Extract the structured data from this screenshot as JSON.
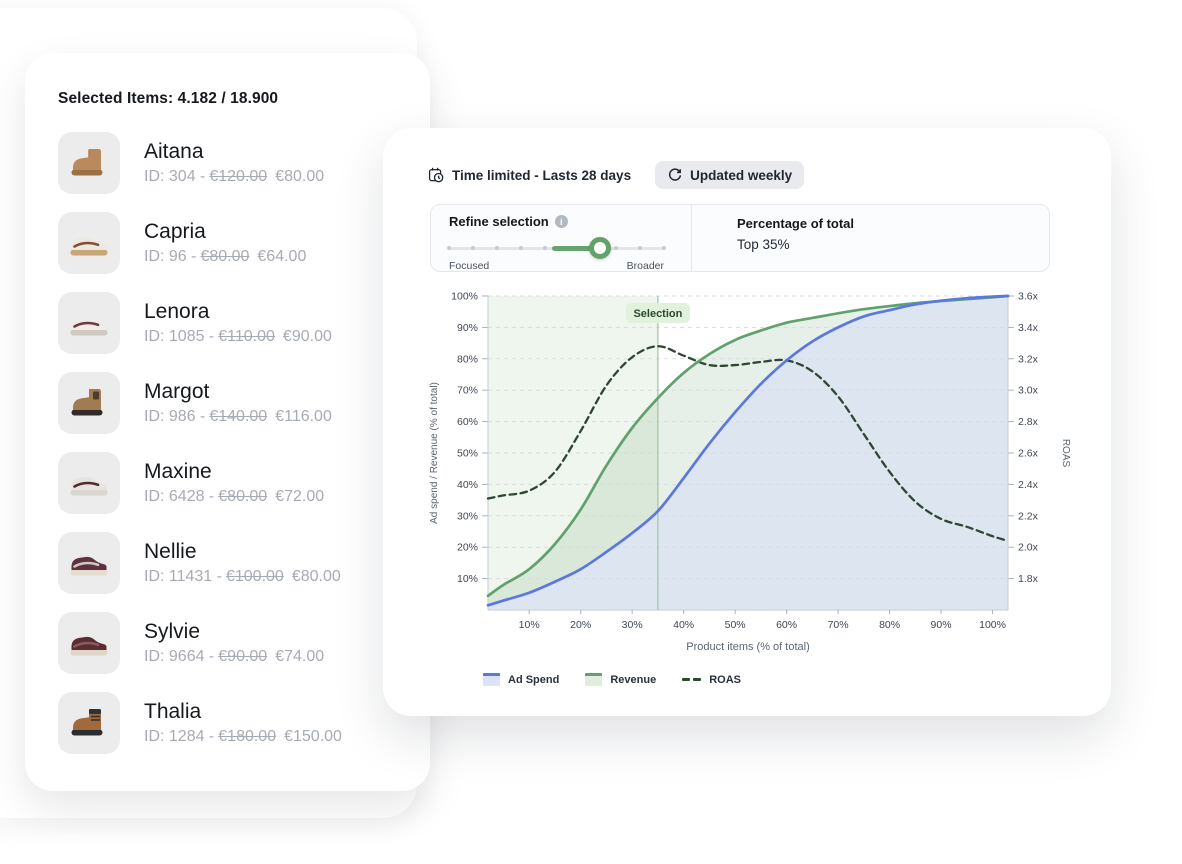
{
  "left_panel": {
    "title": "Selected Items: 4.182 / 18.900",
    "items": [
      {
        "name": "Aitana",
        "id_label": "ID: 304 -",
        "old_price": "€120.00",
        "new_price": "€80.00",
        "shoe": {
          "type": "ugg",
          "upper": "#bb8a5c",
          "accent": "#ab7a4e",
          "sole": "#9c7045"
        }
      },
      {
        "name": "Capria",
        "id_label": "ID: 96 -",
        "old_price": "€80.00",
        "new_price": "€64.00",
        "shoe": {
          "type": "sneaker",
          "upper": "#ece8e2",
          "accent": "#8d4a33",
          "sole": "#c9a678"
        }
      },
      {
        "name": "Lenora",
        "id_label": "ID: 1085 -",
        "old_price": "€110.00",
        "new_price": "€90.00",
        "shoe": {
          "type": "sneaker",
          "upper": "#efece7",
          "accent": "#6d3743",
          "sole": "#cfc9c2"
        }
      },
      {
        "name": "Margot",
        "id_label": "ID: 986 -",
        "old_price": "€140.00",
        "new_price": "€116.00",
        "shoe": {
          "type": "chelsea",
          "upper": "#a17c50",
          "accent": "#4a3c2e",
          "sole": "#2f2c29"
        }
      },
      {
        "name": "Maxine",
        "id_label": "ID: 6428 -",
        "old_price": "€80.00",
        "new_price": "€72.00",
        "shoe": {
          "type": "sneaker",
          "upper": "#e7e3de",
          "accent": "#54282f",
          "sole": "#d9d5d0"
        }
      },
      {
        "name": "Nellie",
        "id_label": "ID: 11431 -",
        "old_price": "€100.00",
        "new_price": "€80.00",
        "shoe": {
          "type": "sneaker",
          "upper": "#5e3040",
          "accent": "#cfc8bf",
          "sole": "#e3dccf"
        }
      },
      {
        "name": "Sylvie",
        "id_label": "ID: 9664 -",
        "old_price": "€90.00",
        "new_price": "€74.00",
        "shoe": {
          "type": "sneaker",
          "upper": "#5a2d33",
          "accent": "#8a5a5e",
          "sole": "#ddd6c9"
        }
      },
      {
        "name": "Thalia",
        "id_label": "ID: 1284 -",
        "old_price": "€180.00",
        "new_price": "€150.00",
        "shoe": {
          "type": "hiker",
          "upper": "#a06a3c",
          "accent": "#2e3136",
          "sole": "#2a2d32"
        }
      }
    ]
  },
  "right_panel": {
    "time_limited_label": "Time limited - Lasts 28 days",
    "updated_weekly_label": "Updated weekly",
    "refine": {
      "title": "Refine selection",
      "left_label": "Focused",
      "right_label": "Broader",
      "slider": {
        "fill_start_pct": 48,
        "value_pct": 70
      }
    },
    "percentage": {
      "title": "Percentage of total",
      "value": "Top 35%"
    }
  },
  "chart_data": {
    "type": "line",
    "xlabel": "Product items (% of total)",
    "ylabel_left": "Ad spend / Revenue (% of total)",
    "ylabel_right": "ROAS",
    "grid": "horizontal-dashed",
    "legend_position": "bottom-left",
    "xlim": [
      2,
      103
    ],
    "ylim_left": [
      0,
      100
    ],
    "ylim_right": [
      1.6,
      3.6
    ],
    "x_ticks": [
      10,
      20,
      30,
      40,
      50,
      60,
      70,
      80,
      90,
      100
    ],
    "x_tick_labels": [
      "10%",
      "20%",
      "30%",
      "40%",
      "50%",
      "60%",
      "70%",
      "80%",
      "90%",
      "100%"
    ],
    "y_ticks_left": [
      10,
      20,
      30,
      40,
      50,
      60,
      70,
      80,
      90,
      100
    ],
    "y_tick_labels_left": [
      "10%",
      "20%",
      "30%",
      "40%",
      "50%",
      "60%",
      "70%",
      "80%",
      "90%",
      "100%"
    ],
    "y_ticks_right": [
      1.8,
      2.0,
      2.2,
      2.4,
      2.6,
      2.8,
      3.0,
      3.2,
      3.4,
      3.6
    ],
    "y_tick_labels_right": [
      "1.8x",
      "2.0x",
      "2.2x",
      "2.4x",
      "2.6x",
      "2.8x",
      "3.0x",
      "3.2x",
      "3.4x",
      "3.6x"
    ],
    "selection": {
      "x": 35,
      "label": "Selection",
      "band_fill": "#eff6ed",
      "line_color": "#a3c2a4",
      "badge_bg": "#e2f1dc",
      "badge_text_color": "#2a4a2c"
    },
    "x": [
      2,
      5,
      10,
      15,
      20,
      25,
      30,
      35,
      40,
      45,
      50,
      55,
      60,
      65,
      70,
      75,
      80,
      85,
      90,
      95,
      100,
      103
    ],
    "series": [
      {
        "name": "Ad Spend",
        "axis": "left",
        "style": "solid",
        "color": "#5a78de",
        "fill": "#dde5f0",
        "legend_fill": "#dbe4f4",
        "values": [
          1.5,
          3,
          5.5,
          9,
          13,
          18.5,
          24.5,
          31.5,
          42,
          53,
          63,
          72,
          79.5,
          85.5,
          90,
          93.5,
          95.5,
          97.3,
          98.5,
          99.3,
          99.8,
          100
        ]
      },
      {
        "name": "Revenue",
        "axis": "left",
        "style": "solid",
        "color": "#61a170",
        "fill": "rgba(110,165,120,0.17)",
        "legend_fill": "#dfeede",
        "values": [
          4.5,
          8,
          13,
          21,
          32,
          46,
          58,
          67.5,
          75.5,
          81.5,
          86,
          89,
          91.5,
          93,
          94.5,
          95.8,
          96.8,
          97.7,
          98.4,
          99,
          99.6,
          100
        ]
      },
      {
        "name": "ROAS",
        "axis": "right",
        "style": "dashed",
        "color": "#2e4733",
        "values": [
          2.31,
          2.33,
          2.36,
          2.48,
          2.74,
          3.03,
          3.21,
          3.28,
          3.22,
          3.16,
          3.16,
          3.18,
          3.19,
          3.12,
          2.96,
          2.72,
          2.48,
          2.29,
          2.18,
          2.13,
          2.07,
          2.04
        ]
      }
    ]
  }
}
